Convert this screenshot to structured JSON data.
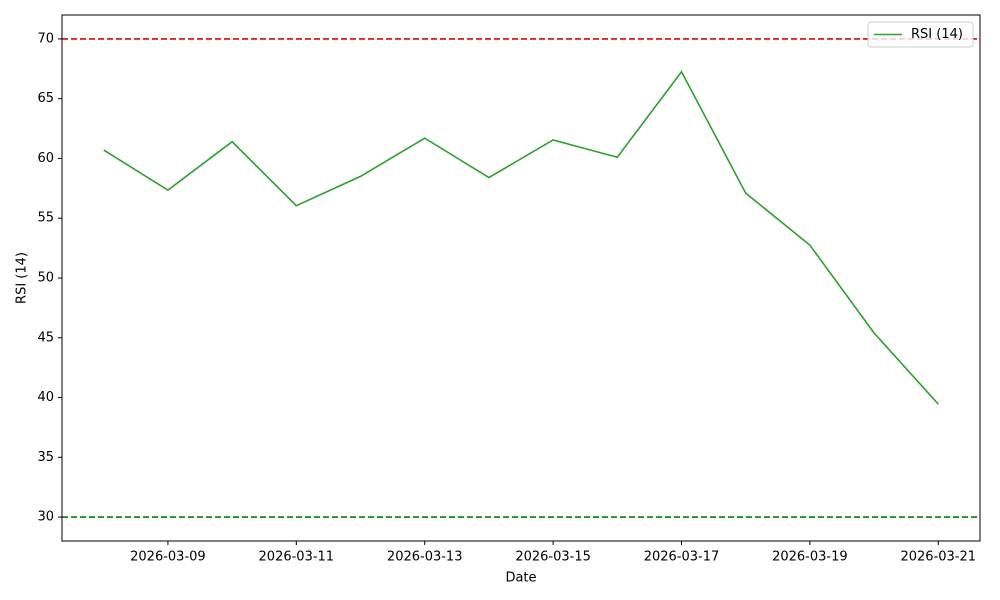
{
  "chart_data": {
    "type": "line",
    "xlabel": "Date",
    "ylabel": "RSI (14)",
    "x": [
      "2026-03-08",
      "2026-03-09",
      "2026-03-10",
      "2026-03-11",
      "2026-03-12",
      "2026-03-13",
      "2026-03-14",
      "2026-03-15",
      "2026-03-16",
      "2026-03-17",
      "2026-03-18",
      "2026-03-19",
      "2026-03-20",
      "2026-03-21"
    ],
    "series": [
      {
        "name": "RSI (14)",
        "color": "#2ca02c",
        "values": [
          60.7,
          57.35,
          61.4,
          56.05,
          58.5,
          61.7,
          58.4,
          61.55,
          60.1,
          67.25,
          57.1,
          52.75,
          45.4,
          39.45
        ]
      }
    ],
    "xlim": [
      "2026-03-07T08:24",
      "2026-03-21T15:36"
    ],
    "xticks": [
      "2026-03-09",
      "2026-03-11",
      "2026-03-13",
      "2026-03-15",
      "2026-03-17",
      "2026-03-19",
      "2026-03-21"
    ],
    "ylim": [
      28,
      72
    ],
    "yticks": [
      30,
      35,
      40,
      45,
      50,
      55,
      60,
      65,
      70
    ],
    "reference_lines": [
      {
        "value": 70,
        "color": "#e00000"
      },
      {
        "value": 30,
        "color": "#008000"
      }
    ],
    "legend": "upper right"
  }
}
